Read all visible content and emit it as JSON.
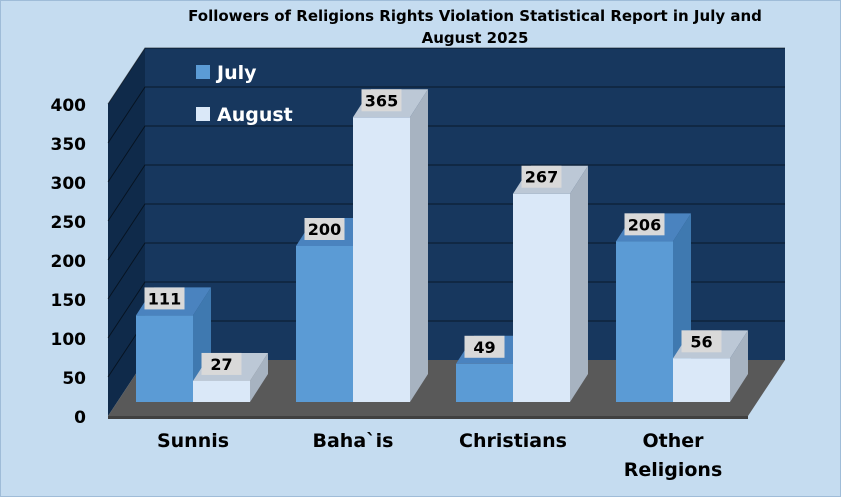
{
  "chart_data": {
    "type": "bar",
    "title": "Followers of Religions Rights Violation Statistical Report in July and August 2025",
    "title_lines": [
      "Followers of Religions Rights Violation Statistical Report in July and",
      "August 2025"
    ],
    "categories": [
      "Sunnis",
      "Baha`is",
      "Christians",
      "Other Religions"
    ],
    "category_lines": [
      [
        "Sunnis"
      ],
      [
        "Baha`is"
      ],
      [
        "Christians"
      ],
      [
        "Other",
        "Religions"
      ]
    ],
    "series": [
      {
        "name": "July",
        "values": [
          111,
          200,
          49,
          206
        ]
      },
      {
        "name": "August",
        "values": [
          27,
          365,
          267,
          56
        ]
      }
    ],
    "ylim": [
      0,
      400
    ],
    "yticks": [
      0,
      50,
      100,
      150,
      200,
      250,
      300,
      350,
      400
    ],
    "xlabel": "",
    "ylabel": "",
    "grid": true,
    "legend_position": "top-left",
    "colors": {
      "background": "#c5dcf0",
      "plot_back": "#17375e",
      "plot_side": "#0f2a4a",
      "floor": "#595959",
      "floor_edge": "#404040",
      "july_front": "#5b9bd5",
      "july_side": "#3f79b0",
      "july_top": "#4a83bf",
      "aug_front": "#dae8f8",
      "aug_side": "#a7b3c1",
      "aug_top": "#bcc8d6",
      "label_box": "#d9d9d9",
      "text": "#000000",
      "legend_text": "#ffffff"
    }
  }
}
